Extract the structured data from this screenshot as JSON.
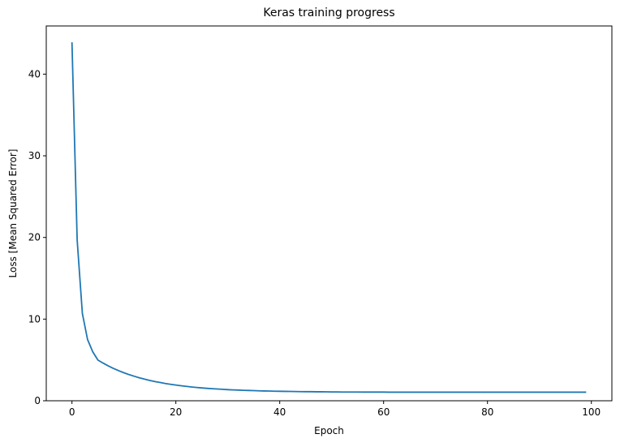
{
  "chart_data": {
    "type": "line",
    "title": "Keras training progress",
    "xlabel": "Epoch",
    "ylabel": "Loss [Mean Squared Error]",
    "xlim": [
      -4.95,
      103.95
    ],
    "ylim": [
      0,
      45.9
    ],
    "xticks": [
      0,
      20,
      40,
      60,
      80,
      100
    ],
    "yticks": [
      0,
      10,
      20,
      30,
      40
    ],
    "grid": false,
    "series": [
      {
        "color": "#1f77b4",
        "x_start": 0,
        "values": [
          43.9,
          19.7,
          10.7,
          7.5,
          6.0,
          4.98,
          4.61,
          4.27,
          3.96,
          3.68,
          3.43,
          3.2,
          3.0,
          2.81,
          2.64,
          2.49,
          2.35,
          2.23,
          2.11,
          2.01,
          1.92,
          1.84,
          1.76,
          1.69,
          1.63,
          1.57,
          1.52,
          1.48,
          1.44,
          1.4,
          1.36,
          1.33,
          1.31,
          1.28,
          1.26,
          1.24,
          1.22,
          1.2,
          1.19,
          1.17,
          1.16,
          1.15,
          1.14,
          1.13,
          1.12,
          1.11,
          1.11,
          1.1,
          1.1,
          1.09,
          1.08,
          1.08,
          1.07,
          1.07,
          1.07,
          1.07,
          1.06,
          1.06,
          1.06,
          1.06,
          1.06,
          1.05,
          1.05,
          1.05,
          1.05,
          1.05,
          1.05,
          1.05,
          1.05,
          1.05,
          1.05,
          1.05,
          1.05,
          1.05,
          1.05,
          1.05,
          1.05,
          1.05,
          1.05,
          1.05,
          1.05,
          1.05,
          1.05,
          1.05,
          1.05,
          1.05,
          1.05,
          1.05,
          1.05,
          1.05,
          1.05,
          1.05,
          1.05,
          1.05,
          1.05,
          1.05,
          1.05,
          1.05,
          1.05,
          1.05
        ]
      }
    ]
  }
}
